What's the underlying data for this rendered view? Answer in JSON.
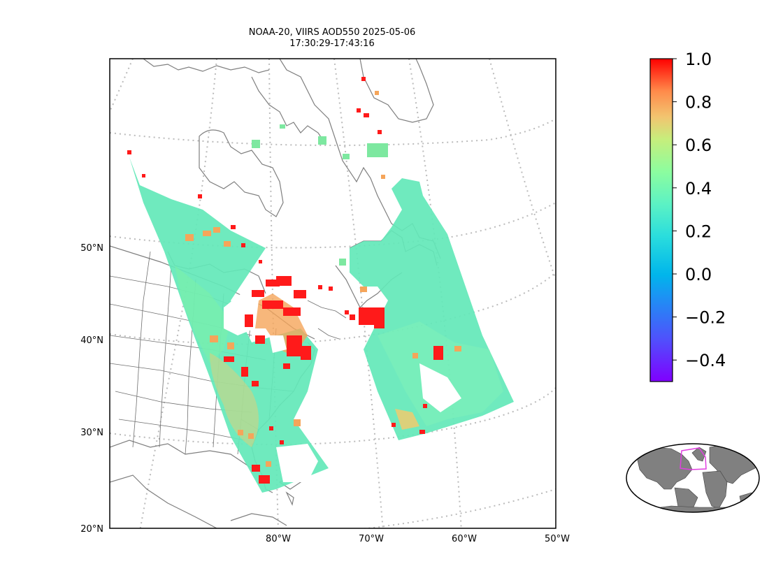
{
  "figure": {
    "title_line1": "NOAA-20, VIIRS AOD550 2025-05-06",
    "title_line2": "17:30:29-17:43:16"
  },
  "map": {
    "lat_labels": [
      "50°N",
      "40°N",
      "30°N",
      "20°N"
    ],
    "lon_labels": [
      "80°W",
      "70°W",
      "60°W",
      "50°W"
    ],
    "gridline_style": "dotted gray",
    "land_outline_color": "#7f7f7f",
    "nodata_color": "#ffffff"
  },
  "colorbar": {
    "colormap": "rainbow",
    "min": -0.5,
    "max": 1.0,
    "tick_labels": [
      "1.0",
      "0.8",
      "0.6",
      "0.4",
      "0.2",
      "0.0",
      "−0.2",
      "−0.4"
    ],
    "ticks": [
      1.0,
      0.8,
      0.6,
      0.4,
      0.2,
      0.0,
      -0.2,
      -0.4
    ]
  },
  "inset": {
    "description_icon": "globe-inset",
    "box_color": "#e040e0",
    "land_color": "#808080"
  },
  "colors": {
    "swath_background": "#63e8b8",
    "high_aod": "#ff1a1a",
    "mid_aod": "#f5a55a"
  }
}
